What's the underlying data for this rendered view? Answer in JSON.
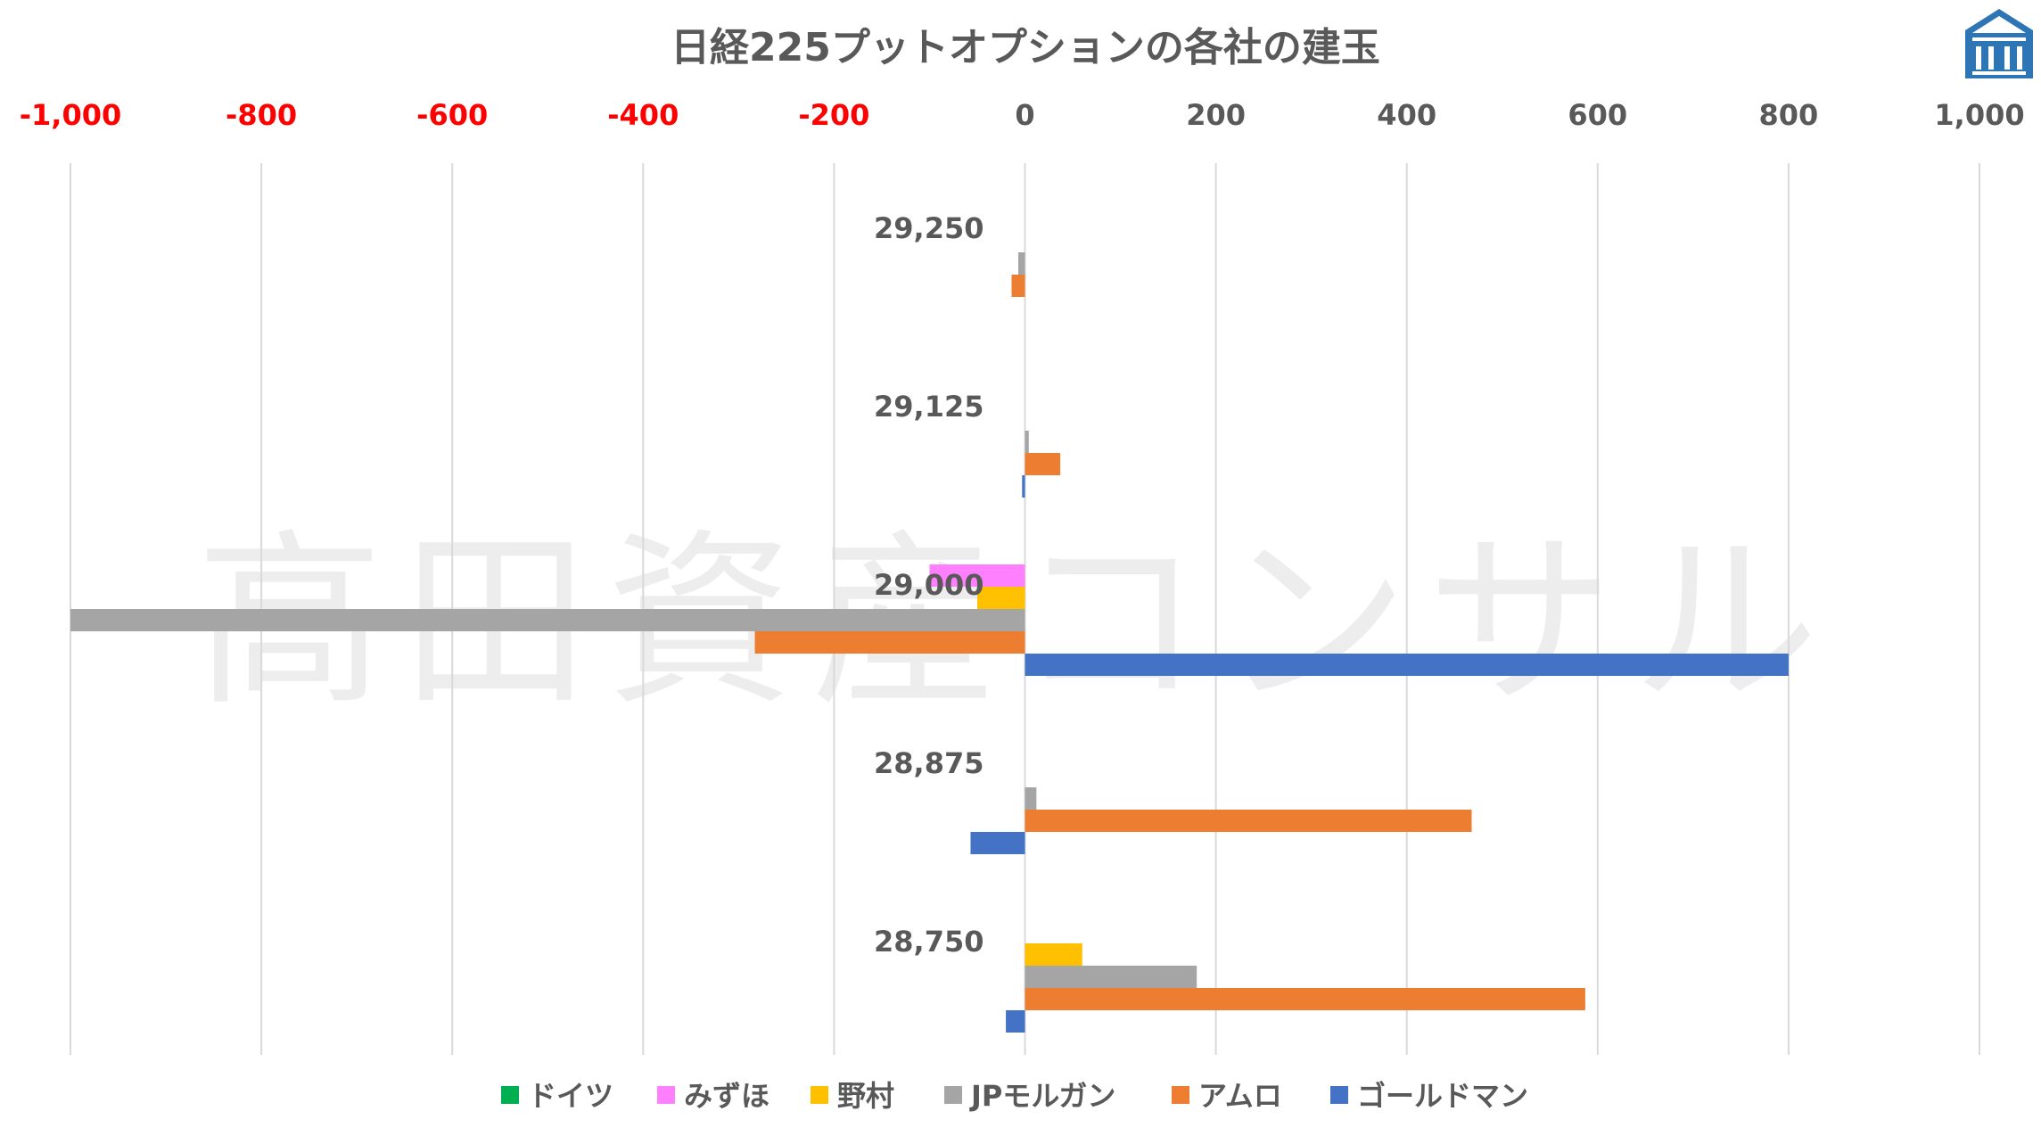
{
  "watermark": "高田資産コンサル",
  "logo": {
    "name": "building-logo",
    "color": "#2e75b6"
  },
  "chart_data": {
    "type": "bar",
    "orientation": "horizontal",
    "title": "日経225プットオプションの各社の建玉",
    "categories": [
      "29,250",
      "29,125",
      "29,000",
      "28,875",
      "28,750"
    ],
    "xlim": [
      -1000,
      1000
    ],
    "xticks": [
      -1000,
      -800,
      -600,
      -400,
      -200,
      0,
      200,
      400,
      600,
      800,
      1000
    ],
    "xtick_labels": [
      "-1,000",
      "-800",
      "-600",
      "-400",
      "-200",
      "0",
      "200",
      "400",
      "600",
      "800",
      "1,000"
    ],
    "negative_tick_color": "#ff0000",
    "positive_tick_color": "#595959",
    "grid": true,
    "legend_position": "bottom",
    "series": [
      {
        "name": "ドイツ",
        "color": "#00b050",
        "values": [
          0,
          0,
          0,
          0,
          0
        ]
      },
      {
        "name": "みずほ",
        "color": "#ff80ff",
        "values": [
          0,
          0,
          -100,
          0,
          0
        ]
      },
      {
        "name": "野村",
        "color": "#ffc000",
        "values": [
          0,
          0,
          -50,
          0,
          60
        ]
      },
      {
        "name": "JPモルガン",
        "color": "#a5a5a5",
        "values": [
          -7,
          4,
          -1000,
          12,
          180
        ]
      },
      {
        "name": "アムロ",
        "color": "#ed7d31",
        "values": [
          -14,
          37,
          -283,
          468,
          587
        ]
      },
      {
        "name": "ゴールドマン",
        "color": "#4472c4",
        "values": [
          0,
          -3,
          800,
          -57,
          -20
        ]
      }
    ]
  }
}
